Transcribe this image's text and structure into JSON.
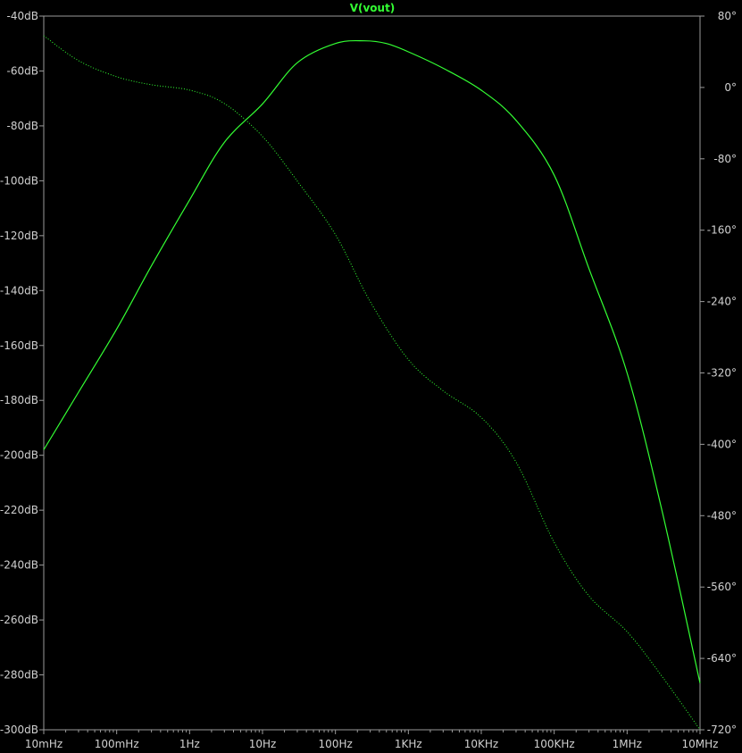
{
  "chart_data": {
    "type": "line",
    "title": "V(vout)",
    "x_scale": "log",
    "x_ticks": [
      "10mHz",
      "100mHz",
      "1Hz",
      "10Hz",
      "100Hz",
      "1KHz",
      "10KHz",
      "100KHz",
      "1MHz",
      "10MHz"
    ],
    "xlim": [
      0.01,
      10000000
    ],
    "y_left": {
      "unit": "dB",
      "ylim": [
        -300,
        -40
      ],
      "ticks": [
        "-40dB",
        "-60dB",
        "-80dB",
        "-100dB",
        "-120dB",
        "-140dB",
        "-160dB",
        "-180dB",
        "-200dB",
        "-220dB",
        "-240dB",
        "-260dB",
        "-280dB",
        "-300dB"
      ]
    },
    "y_right": {
      "unit": "degrees",
      "ylim": [
        -720,
        80
      ],
      "ticks": [
        "80°",
        "0°",
        "-80°",
        "-160°",
        "-240°",
        "-320°",
        "-400°",
        "-480°",
        "-560°",
        "-640°",
        "-720°"
      ]
    },
    "grid": false,
    "series": [
      {
        "axis": "left",
        "style": "solid",
        "color": "#33ff33",
        "points": [
          [
            0.01,
            -198
          ],
          [
            0.03,
            -177
          ],
          [
            0.1,
            -154
          ],
          [
            0.3,
            -131
          ],
          [
            1,
            -107
          ],
          [
            3,
            -86
          ],
          [
            10,
            -72
          ],
          [
            30,
            -57
          ],
          [
            100,
            -50
          ],
          [
            250,
            -49
          ],
          [
            500,
            -50
          ],
          [
            1000,
            -53
          ],
          [
            3000,
            -59
          ],
          [
            10000,
            -67
          ],
          [
            30000,
            -78
          ],
          [
            100000,
            -98
          ],
          [
            300000,
            -132
          ],
          [
            1000000,
            -170
          ],
          [
            3000000,
            -220
          ],
          [
            10000000,
            -283
          ]
        ]
      },
      {
        "axis": "right",
        "style": "dotted",
        "color": "#33ff33",
        "points": [
          [
            0.01,
            58
          ],
          [
            0.03,
            30
          ],
          [
            0.1,
            12
          ],
          [
            0.3,
            3
          ],
          [
            1,
            -3
          ],
          [
            3,
            -18
          ],
          [
            10,
            -55
          ],
          [
            30,
            -105
          ],
          [
            100,
            -165
          ],
          [
            300,
            -240
          ],
          [
            1000,
            -305
          ],
          [
            3000,
            -340
          ],
          [
            10000,
            -370
          ],
          [
            30000,
            -420
          ],
          [
            100000,
            -510
          ],
          [
            300000,
            -570
          ],
          [
            1000000,
            -610
          ],
          [
            3000000,
            -660
          ],
          [
            10000000,
            -720
          ]
        ]
      }
    ]
  }
}
